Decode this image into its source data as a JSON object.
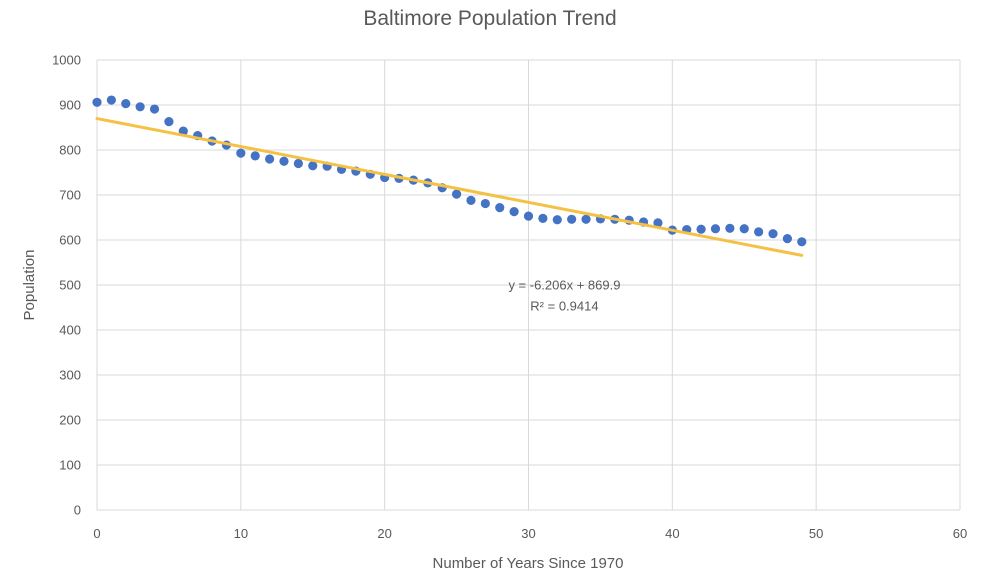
{
  "chart_data": {
    "type": "scatter",
    "title": "Baltimore Population Trend",
    "xlabel": "Number of Years Since 1970",
    "ylabel": "Population",
    "xlim": [
      0,
      60
    ],
    "ylim": [
      0,
      1000
    ],
    "xticks": [
      0,
      10,
      20,
      30,
      40,
      50,
      60
    ],
    "yticks": [
      0,
      100,
      200,
      300,
      400,
      500,
      600,
      700,
      800,
      900,
      1000
    ],
    "grid": true,
    "legend": "none",
    "series": [
      {
        "color": "#4472c4",
        "marker": "circle",
        "x": [
          0,
          1,
          2,
          3,
          4,
          5,
          6,
          7,
          8,
          9,
          10,
          11,
          12,
          13,
          14,
          15,
          16,
          17,
          18,
          19,
          20,
          21,
          22,
          23,
          24,
          25,
          26,
          27,
          28,
          29,
          30,
          31,
          32,
          33,
          34,
          35,
          36,
          37,
          38,
          39,
          40,
          41,
          42,
          43,
          44,
          45,
          46,
          47,
          48,
          49
        ],
        "y": [
          906,
          911,
          903,
          896,
          891,
          863,
          842,
          832,
          820,
          811,
          793,
          787,
          780,
          775,
          770,
          765,
          764,
          757,
          753,
          746,
          739,
          737,
          733,
          727,
          716,
          702,
          688,
          681,
          672,
          663,
          653,
          648,
          645,
          646,
          646,
          647,
          646,
          644,
          640,
          638,
          622,
          623,
          624,
          625,
          626,
          625,
          618,
          614,
          603,
          596
        ]
      }
    ],
    "trendline": {
      "type": "linear",
      "color": "#f4c144",
      "slope": -6.206,
      "intercept": 869.9,
      "x_range": [
        0,
        49
      ],
      "equation": "y = -6.206x + 869.9",
      "r_squared": "R² = 0.9414"
    }
  }
}
